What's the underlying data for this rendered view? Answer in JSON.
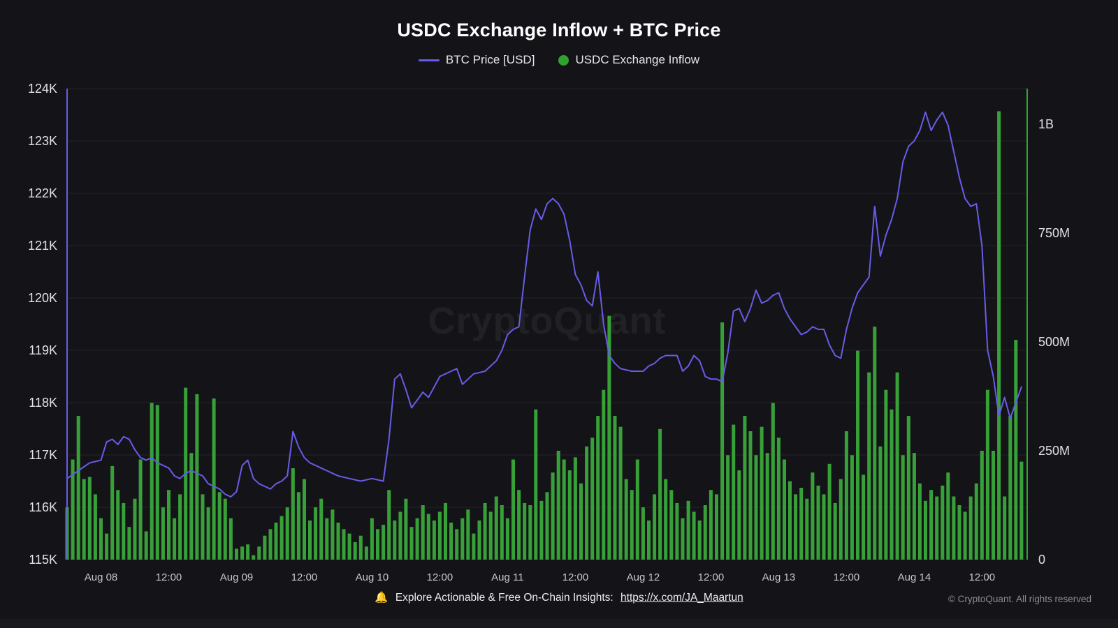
{
  "page": {
    "background": "#141418",
    "watermark": "CryptoQuant"
  },
  "header": {
    "title": "USDC Exchange Inflow + BTC Price"
  },
  "legend": {
    "items": [
      {
        "label": "BTC Price [USD]",
        "marker": "line",
        "color": "#675ce8"
      },
      {
        "label": "USDC Exchange Inflow",
        "marker": "circle",
        "color": "#2fa32f"
      }
    ]
  },
  "footer": {
    "bell_icon": "🔔",
    "text": "Explore Actionable & Free On-Chain Insights:",
    "link": "https://x.com/JA_Maartun",
    "copyright": "© CryptoQuant. All rights reserved"
  },
  "chart_data": {
    "type": "combo",
    "title": "USDC Exchange Inflow + BTC Price",
    "grid": {
      "horizontal": true,
      "color": "#232329"
    },
    "x_axis": {
      "unit": "time (hourly)",
      "start_label": "Aug 07 18:00",
      "hours_domain": [
        0,
        170
      ],
      "ticks": [
        {
          "hour": 6,
          "label": "Aug 08"
        },
        {
          "hour": 18,
          "label": "12:00"
        },
        {
          "hour": 30,
          "label": "Aug 09"
        },
        {
          "hour": 42,
          "label": "12:00"
        },
        {
          "hour": 54,
          "label": "Aug 10"
        },
        {
          "hour": 66,
          "label": "12:00"
        },
        {
          "hour": 78,
          "label": "Aug 11"
        },
        {
          "hour": 90,
          "label": "12:00"
        },
        {
          "hour": 102,
          "label": "Aug 12"
        },
        {
          "hour": 114,
          "label": "12:00"
        },
        {
          "hour": 126,
          "label": "Aug 13"
        },
        {
          "hour": 138,
          "label": "12:00"
        },
        {
          "hour": 150,
          "label": "Aug 14"
        },
        {
          "hour": 162,
          "label": "12:00"
        }
      ]
    },
    "y_left": {
      "name": "BTC Price [USD]",
      "min": 115000,
      "max": 124000,
      "ticks": [
        {
          "value": 124000,
          "label": "124K"
        },
        {
          "value": 123000,
          "label": "123K"
        },
        {
          "value": 122000,
          "label": "122K"
        },
        {
          "value": 121000,
          "label": "121K"
        },
        {
          "value": 120000,
          "label": "120K"
        },
        {
          "value": 119000,
          "label": "119K"
        },
        {
          "value": 118000,
          "label": "118K"
        },
        {
          "value": 117000,
          "label": "117K"
        },
        {
          "value": 116000,
          "label": "116K"
        },
        {
          "value": 115000,
          "label": "115K"
        }
      ]
    },
    "y_right": {
      "name": "USDC Exchange Inflow",
      "unit": "USDC (millions)",
      "min": 0,
      "top_value": 1082,
      "axis_color": "#2ea52e",
      "ticks": [
        {
          "value": 1000,
          "label": "1B"
        },
        {
          "value": 750,
          "label": "750M"
        },
        {
          "value": 500,
          "label": "500M"
        },
        {
          "value": 250,
          "label": "250M"
        },
        {
          "value": 0,
          "label": "0"
        }
      ]
    },
    "series": [
      {
        "name": "BTC Price [USD]",
        "type": "line",
        "axis": "left",
        "color": "#675ce8",
        "unit": "USD",
        "points_hour_price": [
          [
            0,
            116550
          ],
          [
            2,
            116700
          ],
          [
            4,
            116850
          ],
          [
            6,
            116900
          ],
          [
            7,
            117250
          ],
          [
            8,
            117300
          ],
          [
            9,
            117200
          ],
          [
            10,
            117350
          ],
          [
            11,
            117300
          ],
          [
            12,
            117100
          ],
          [
            13,
            116950
          ],
          [
            14,
            116900
          ],
          [
            15,
            116950
          ],
          [
            16,
            116850
          ],
          [
            17,
            116800
          ],
          [
            18,
            116750
          ],
          [
            19,
            116600
          ],
          [
            20,
            116550
          ],
          [
            21,
            116650
          ],
          [
            22,
            116700
          ],
          [
            23,
            116650
          ],
          [
            24,
            116600
          ],
          [
            25,
            116450
          ],
          [
            26,
            116400
          ],
          [
            27,
            116350
          ],
          [
            28,
            116250
          ],
          [
            29,
            116200
          ],
          [
            30,
            116300
          ],
          [
            31,
            116800
          ],
          [
            32,
            116900
          ],
          [
            33,
            116550
          ],
          [
            34,
            116450
          ],
          [
            35,
            116400
          ],
          [
            36,
            116350
          ],
          [
            37,
            116450
          ],
          [
            38,
            116500
          ],
          [
            39,
            116600
          ],
          [
            40,
            117450
          ],
          [
            41,
            117150
          ],
          [
            42,
            116950
          ],
          [
            43,
            116850
          ],
          [
            44,
            116800
          ],
          [
            45,
            116750
          ],
          [
            46,
            116700
          ],
          [
            47,
            116650
          ],
          [
            48,
            116600
          ],
          [
            50,
            116550
          ],
          [
            52,
            116500
          ],
          [
            54,
            116550
          ],
          [
            56,
            116500
          ],
          [
            57,
            117300
          ],
          [
            58,
            118450
          ],
          [
            59,
            118550
          ],
          [
            60,
            118250
          ],
          [
            61,
            117900
          ],
          [
            62,
            118050
          ],
          [
            63,
            118200
          ],
          [
            64,
            118100
          ],
          [
            65,
            118300
          ],
          [
            66,
            118500
          ],
          [
            67,
            118550
          ],
          [
            68,
            118600
          ],
          [
            69,
            118650
          ],
          [
            70,
            118350
          ],
          [
            71,
            118450
          ],
          [
            72,
            118550
          ],
          [
            74,
            118600
          ],
          [
            76,
            118800
          ],
          [
            77,
            119000
          ],
          [
            78,
            119300
          ],
          [
            79,
            119400
          ],
          [
            80,
            119450
          ],
          [
            81,
            120400
          ],
          [
            82,
            121300
          ],
          [
            83,
            121700
          ],
          [
            84,
            121500
          ],
          [
            85,
            121800
          ],
          [
            86,
            121900
          ],
          [
            87,
            121800
          ],
          [
            88,
            121600
          ],
          [
            89,
            121100
          ],
          [
            90,
            120450
          ],
          [
            91,
            120250
          ],
          [
            92,
            119950
          ],
          [
            93,
            119850
          ],
          [
            94,
            120500
          ],
          [
            95,
            119500
          ],
          [
            96,
            118900
          ],
          [
            97,
            118750
          ],
          [
            98,
            118650
          ],
          [
            100,
            118600
          ],
          [
            102,
            118600
          ],
          [
            103,
            118700
          ],
          [
            104,
            118750
          ],
          [
            105,
            118850
          ],
          [
            106,
            118900
          ],
          [
            108,
            118900
          ],
          [
            109,
            118600
          ],
          [
            110,
            118700
          ],
          [
            111,
            118900
          ],
          [
            112,
            118800
          ],
          [
            113,
            118500
          ],
          [
            114,
            118450
          ],
          [
            115,
            118450
          ],
          [
            116,
            118400
          ],
          [
            117,
            118950
          ],
          [
            118,
            119750
          ],
          [
            119,
            119800
          ],
          [
            120,
            119550
          ],
          [
            121,
            119800
          ],
          [
            122,
            120150
          ],
          [
            123,
            119900
          ],
          [
            124,
            119950
          ],
          [
            125,
            120050
          ],
          [
            126,
            120100
          ],
          [
            127,
            119800
          ],
          [
            128,
            119600
          ],
          [
            129,
            119450
          ],
          [
            130,
            119300
          ],
          [
            131,
            119350
          ],
          [
            132,
            119450
          ],
          [
            133,
            119400
          ],
          [
            134,
            119400
          ],
          [
            135,
            119100
          ],
          [
            136,
            118900
          ],
          [
            137,
            118850
          ],
          [
            138,
            119400
          ],
          [
            139,
            119800
          ],
          [
            140,
            120100
          ],
          [
            141,
            120250
          ],
          [
            142,
            120400
          ],
          [
            143,
            121750
          ],
          [
            144,
            120800
          ],
          [
            145,
            121200
          ],
          [
            146,
            121500
          ],
          [
            147,
            121900
          ],
          [
            148,
            122600
          ],
          [
            149,
            122900
          ],
          [
            150,
            123000
          ],
          [
            151,
            123200
          ],
          [
            152,
            123550
          ],
          [
            153,
            123200
          ],
          [
            154,
            123400
          ],
          [
            155,
            123550
          ],
          [
            156,
            123300
          ],
          [
            157,
            122800
          ],
          [
            158,
            122300
          ],
          [
            159,
            121900
          ],
          [
            160,
            121750
          ],
          [
            161,
            121800
          ],
          [
            162,
            121000
          ],
          [
            163,
            119000
          ],
          [
            164,
            118500
          ],
          [
            165,
            117750
          ],
          [
            166,
            118100
          ],
          [
            167,
            117700
          ],
          [
            168,
            118000
          ],
          [
            169,
            118300
          ]
        ]
      },
      {
        "name": "USDC Exchange Inflow",
        "type": "bar",
        "axis": "right",
        "color": "#38a038",
        "unit": "millions USDC",
        "start_hour": 0,
        "interval_hours": 1,
        "values_millions": [
          120,
          230,
          330,
          185,
          190,
          150,
          95,
          60,
          215,
          160,
          130,
          75,
          140,
          230,
          65,
          360,
          355,
          120,
          160,
          95,
          150,
          395,
          245,
          380,
          150,
          120,
          370,
          155,
          140,
          95,
          25,
          30,
          35,
          10,
          30,
          55,
          70,
          85,
          100,
          120,
          210,
          155,
          185,
          90,
          120,
          140,
          95,
          115,
          85,
          70,
          60,
          40,
          55,
          30,
          95,
          70,
          80,
          160,
          90,
          110,
          140,
          75,
          95,
          125,
          105,
          90,
          110,
          130,
          85,
          70,
          95,
          115,
          60,
          90,
          130,
          110,
          145,
          125,
          95,
          230,
          160,
          130,
          125,
          345,
          135,
          155,
          200,
          250,
          230,
          205,
          235,
          175,
          260,
          280,
          330,
          390,
          560,
          330,
          305,
          185,
          160,
          230,
          120,
          90,
          150,
          300,
          185,
          160,
          130,
          95,
          135,
          110,
          90,
          125,
          160,
          150,
          545,
          240,
          310,
          205,
          330,
          295,
          240,
          305,
          245,
          360,
          280,
          230,
          180,
          150,
          165,
          140,
          200,
          170,
          150,
          220,
          130,
          185,
          295,
          240,
          480,
          195,
          430,
          535,
          260,
          390,
          345,
          430,
          240,
          330,
          245,
          175,
          135,
          160,
          145,
          170,
          200,
          145,
          125,
          110,
          145,
          175,
          250,
          390,
          250,
          1030,
          145,
          330,
          505,
          225
        ]
      }
    ]
  }
}
